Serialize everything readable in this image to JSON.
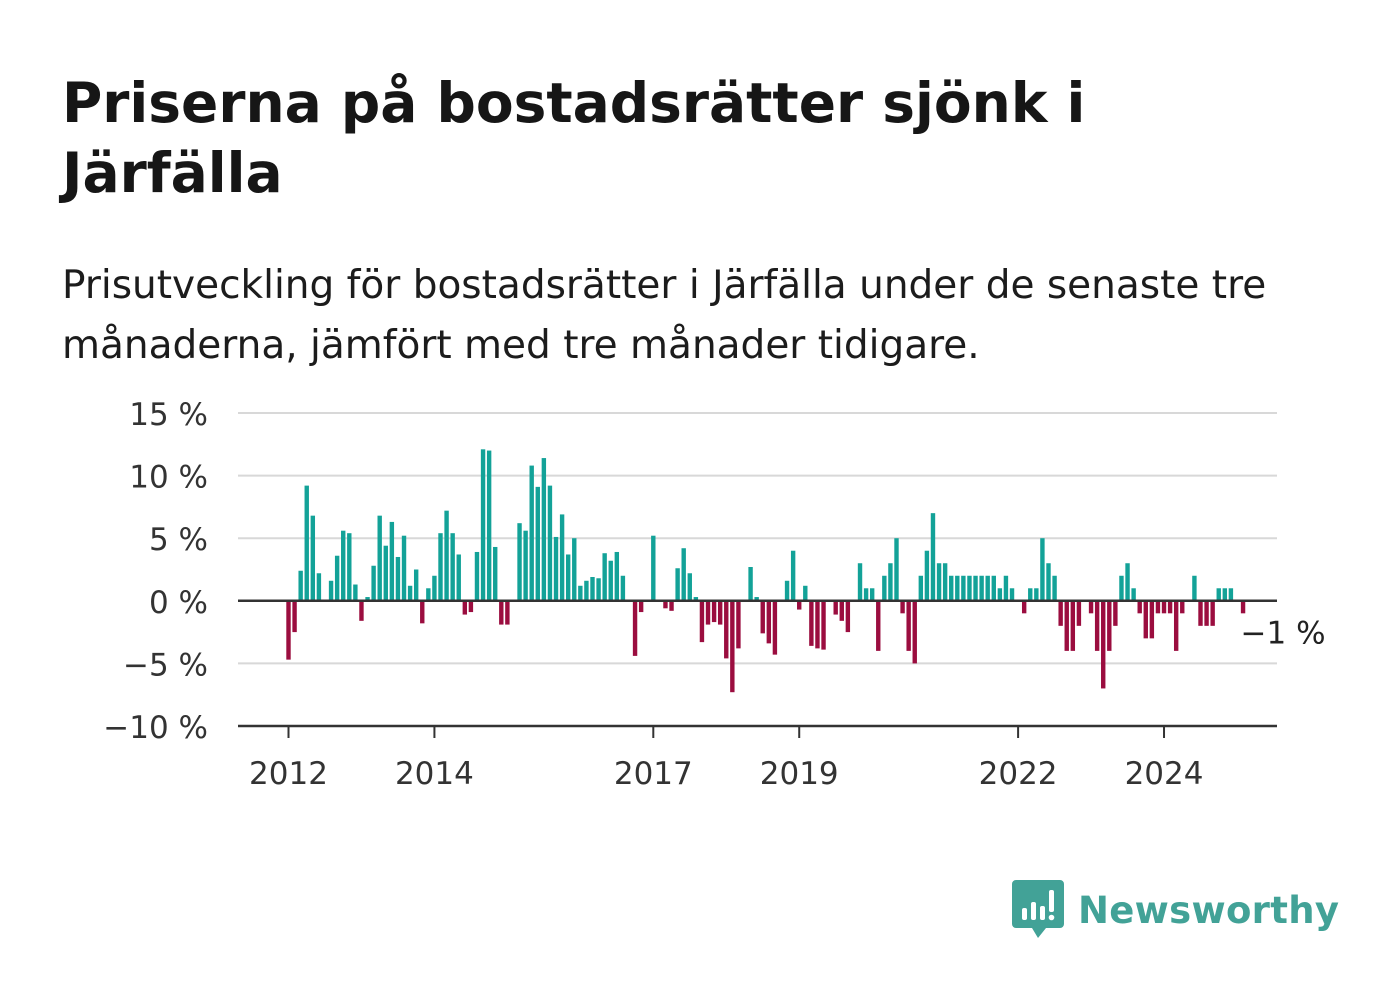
{
  "title": "Priserna på bostadsrätter sjönk i Järfälla",
  "subtitle": "Prisutveckling för bostadsrätter i Järfälla under de senaste tre månaderna, jämfört med tre månader tidigare.",
  "brand": {
    "name": "Newsworthy",
    "icon": "bar-chart-speech-bubble-icon"
  },
  "colors": {
    "positive": "#13a298",
    "negative": "#9b0d3f",
    "grid": "#d8d8d8",
    "axis": "#333333"
  },
  "chart_data": {
    "type": "bar",
    "ylim": [
      -10,
      15
    ],
    "y_ticks": [
      15,
      10,
      5,
      0,
      -5,
      -10
    ],
    "y_tick_labels": [
      "15 %",
      "10 %",
      "5 %",
      "0 %",
      "−5 %",
      "−10 %"
    ],
    "x_ticks": [
      {
        "label": "2012",
        "index": 0
      },
      {
        "label": "2014",
        "index": 24
      },
      {
        "label": "2017",
        "index": 60
      },
      {
        "label": "2019",
        "index": 84
      },
      {
        "label": "2022",
        "index": 120
      },
      {
        "label": "2024",
        "index": 144
      }
    ],
    "values": [
      -4.7,
      -2.5,
      2.4,
      9.2,
      6.8,
      2.2,
      0,
      1.6,
      3.6,
      5.6,
      5.4,
      1.3,
      -1.6,
      0.3,
      2.8,
      6.8,
      4.4,
      6.3,
      3.5,
      5.2,
      1.2,
      2.5,
      -1.8,
      1.0,
      2.0,
      5.4,
      7.2,
      5.4,
      3.7,
      -1.1,
      -0.9,
      3.9,
      12.1,
      12.0,
      4.3,
      -1.9,
      -1.9,
      0,
      6.2,
      5.6,
      10.8,
      9.1,
      11.4,
      9.2,
      5.1,
      6.9,
      3.7,
      5.0,
      1.2,
      1.6,
      1.9,
      1.8,
      3.8,
      3.2,
      3.9,
      2.0,
      0,
      -4.4,
      -0.9,
      0,
      5.2,
      0,
      -0.6,
      -0.8,
      2.6,
      4.2,
      2.2,
      0.3,
      -3.3,
      -1.9,
      -1.7,
      -1.9,
      -4.6,
      -7.3,
      -3.8,
      0,
      2.7,
      0.3,
      -2.6,
      -3.4,
      -4.3,
      0,
      1.6,
      4.0,
      -0.7,
      1.2,
      -3.6,
      -3.8,
      -3.9,
      0,
      -1.1,
      -1.6,
      -2.5,
      0,
      3.0,
      1.0,
      1.0,
      -4.0,
      2.0,
      3.0,
      5.0,
      -1.0,
      -4.0,
      -5.0,
      2.0,
      4.0,
      7.0,
      3.0,
      3.0,
      2.0,
      2.0,
      2.0,
      2.0,
      2.0,
      2.0,
      2.0,
      2.0,
      1.0,
      2.0,
      1.0,
      0,
      -1.0,
      1.0,
      1.0,
      5.0,
      3.0,
      2.0,
      -2.0,
      -4.0,
      -4.0,
      -2.0,
      0,
      -1.0,
      -4.0,
      -7.0,
      -4.0,
      -2.0,
      2.0,
      3.0,
      1.0,
      -1.0,
      -3.0,
      -3.0,
      -1.0,
      -1.0,
      -1.0,
      -4.0,
      -1.0,
      0,
      2.0,
      -2.0,
      -2.0,
      -2.0,
      1.0,
      1.0,
      1.0,
      0,
      -1.0
    ],
    "last_label": "−1 %"
  }
}
